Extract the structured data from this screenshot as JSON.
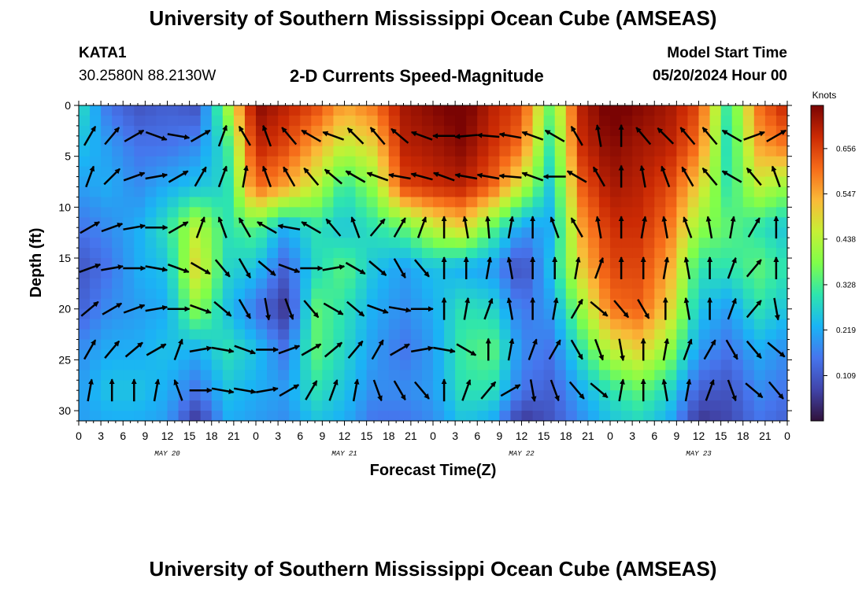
{
  "header": {
    "title": "University of Southern Mississippi Ocean Cube (AMSEAS)",
    "station_id": "KATA1",
    "station_coords": "30.2580N  88.2130W",
    "subtitle": "2-D Currents Speed-Magnitude",
    "model_start_label": "Model Start Time",
    "model_start_value": "05/20/2024 Hour 00"
  },
  "footer": {
    "title": "University of Southern Mississippi Ocean Cube (AMSEAS)"
  },
  "chart_data": {
    "type": "heatmap",
    "title": "2-D Currents Speed-Magnitude",
    "xlabel": "Forecast Time(Z)",
    "ylabel": "Depth (ft)",
    "x_range_hours": [
      0,
      96
    ],
    "y_range_ft": [
      0,
      31
    ],
    "y_inverted": true,
    "x_tick_labels": [
      "0",
      "3",
      "6",
      "9",
      "12",
      "15",
      "18",
      "21",
      "0",
      "3",
      "6",
      "9",
      "12",
      "15",
      "18",
      "21",
      "0",
      "3",
      "6",
      "9",
      "12",
      "15",
      "18",
      "21",
      "0",
      "3",
      "6",
      "9",
      "12",
      "15",
      "18",
      "21",
      "0"
    ],
    "y_ticks": [
      0,
      5,
      10,
      15,
      20,
      25,
      30
    ],
    "day_labels": [
      {
        "label": "MAY 20",
        "hour": 12
      },
      {
        "label": "MAY 21",
        "hour": 36
      },
      {
        "label": "MAY 22",
        "hour": 60
      },
      {
        "label": "MAY 23",
        "hour": 84
      }
    ],
    "colorbar": {
      "title": "Knots",
      "ticks": [
        0.109,
        0.219,
        0.328,
        0.438,
        0.547,
        0.656
      ],
      "range": [
        0.0,
        0.76
      ]
    },
    "time_hours": [
      0,
      4,
      8,
      12,
      16,
      20,
      24,
      28,
      32,
      36,
      40,
      44,
      48,
      52,
      56,
      60,
      64,
      68,
      72,
      76,
      80,
      84,
      88,
      92,
      96
    ],
    "depths_ft": [
      0,
      4,
      8,
      12,
      16,
      20,
      24,
      28,
      31
    ],
    "speed_knots": [
      [
        0.3,
        0.15,
        0.1,
        0.12,
        0.1,
        0.4,
        0.75,
        0.7,
        0.65,
        0.55,
        0.6,
        0.72,
        0.75,
        0.78,
        0.7,
        0.65,
        0.35,
        0.7,
        0.78,
        0.75,
        0.72,
        0.65,
        0.3,
        0.6,
        0.7
      ],
      [
        0.25,
        0.2,
        0.15,
        0.15,
        0.18,
        0.3,
        0.7,
        0.65,
        0.55,
        0.45,
        0.5,
        0.7,
        0.72,
        0.75,
        0.68,
        0.6,
        0.3,
        0.68,
        0.75,
        0.72,
        0.7,
        0.6,
        0.28,
        0.55,
        0.6
      ],
      [
        0.2,
        0.22,
        0.18,
        0.22,
        0.25,
        0.28,
        0.62,
        0.55,
        0.45,
        0.3,
        0.4,
        0.65,
        0.68,
        0.7,
        0.62,
        0.45,
        0.25,
        0.62,
        0.72,
        0.7,
        0.65,
        0.5,
        0.3,
        0.45,
        0.4
      ],
      [
        0.15,
        0.18,
        0.22,
        0.3,
        0.45,
        0.3,
        0.35,
        0.22,
        0.3,
        0.25,
        0.3,
        0.35,
        0.45,
        0.5,
        0.35,
        0.2,
        0.22,
        0.55,
        0.68,
        0.68,
        0.6,
        0.4,
        0.35,
        0.3,
        0.25
      ],
      [
        0.1,
        0.15,
        0.22,
        0.25,
        0.5,
        0.28,
        0.25,
        0.12,
        0.28,
        0.35,
        0.25,
        0.2,
        0.25,
        0.22,
        0.2,
        0.08,
        0.25,
        0.5,
        0.65,
        0.65,
        0.55,
        0.3,
        0.3,
        0.35,
        0.3
      ],
      [
        0.12,
        0.18,
        0.2,
        0.22,
        0.4,
        0.25,
        0.15,
        0.05,
        0.35,
        0.3,
        0.22,
        0.18,
        0.22,
        0.3,
        0.28,
        0.15,
        0.2,
        0.4,
        0.6,
        0.62,
        0.5,
        0.25,
        0.2,
        0.3,
        0.25
      ],
      [
        0.18,
        0.22,
        0.22,
        0.25,
        0.22,
        0.3,
        0.25,
        0.15,
        0.35,
        0.28,
        0.2,
        0.15,
        0.2,
        0.32,
        0.35,
        0.18,
        0.15,
        0.3,
        0.45,
        0.5,
        0.4,
        0.2,
        0.15,
        0.22,
        0.18
      ],
      [
        0.2,
        0.25,
        0.25,
        0.22,
        0.15,
        0.25,
        0.22,
        0.2,
        0.3,
        0.25,
        0.18,
        0.18,
        0.2,
        0.3,
        0.3,
        0.15,
        0.12,
        0.22,
        0.3,
        0.35,
        0.28,
        0.12,
        0.1,
        0.18,
        0.15
      ],
      [
        0.2,
        0.22,
        0.22,
        0.2,
        0.05,
        0.22,
        0.2,
        0.18,
        0.25,
        0.22,
        0.15,
        0.15,
        0.18,
        0.25,
        0.22,
        0.05,
        0.1,
        0.18,
        0.25,
        0.28,
        0.22,
        0.05,
        0.08,
        0.15,
        0.12
      ]
    ],
    "vector_time_hours": [
      1.5,
      4.5,
      7.5,
      10.5,
      13.5,
      16.5,
      19.5,
      22.5,
      25.5,
      28.5,
      31.5,
      34.5,
      37.5,
      40.5,
      43.5,
      46.5,
      49.5,
      52.5,
      55.5,
      58.5,
      61.5,
      64.5,
      67.5,
      70.5,
      73.5,
      76.5,
      79.5,
      82.5,
      85.5,
      88.5,
      91.5,
      94.5
    ],
    "vector_depths_ft": [
      3,
      7,
      12,
      16,
      20,
      24,
      28
    ],
    "vector_directions_deg": [
      [
        30,
        40,
        60,
        110,
        100,
        60,
        20,
        330,
        340,
        320,
        300,
        290,
        315,
        320,
        310,
        290,
        270,
        265,
        275,
        280,
        290,
        300,
        330,
        350,
        0,
        320,
        315,
        320,
        320,
        300,
        70,
        60
      ],
      [
        20,
        45,
        70,
        80,
        60,
        30,
        20,
        10,
        340,
        330,
        320,
        310,
        300,
        290,
        280,
        285,
        290,
        280,
        280,
        275,
        290,
        270,
        300,
        330,
        0,
        350,
        340,
        330,
        320,
        300,
        320,
        340
      ],
      [
        60,
        70,
        80,
        90,
        60,
        20,
        340,
        330,
        300,
        280,
        300,
        320,
        340,
        40,
        30,
        20,
        0,
        350,
        355,
        10,
        0,
        340,
        330,
        350,
        0,
        10,
        350,
        340,
        350,
        10,
        30,
        0
      ],
      [
        70,
        80,
        90,
        100,
        110,
        120,
        140,
        150,
        130,
        110,
        90,
        80,
        120,
        130,
        150,
        140,
        0,
        0,
        10,
        350,
        0,
        0,
        10,
        20,
        0,
        0,
        10,
        350,
        0,
        20,
        40,
        0
      ],
      [
        50,
        60,
        70,
        80,
        90,
        110,
        130,
        150,
        170,
        160,
        140,
        120,
        130,
        110,
        100,
        90,
        0,
        10,
        20,
        350,
        0,
        10,
        30,
        130,
        140,
        150,
        0,
        350,
        0,
        20,
        40,
        170
      ],
      [
        30,
        40,
        50,
        60,
        20,
        80,
        100,
        110,
        90,
        70,
        60,
        50,
        40,
        30,
        60,
        80,
        100,
        120,
        0,
        10,
        20,
        30,
        150,
        160,
        170,
        0,
        10,
        20,
        30,
        150,
        140,
        130
      ],
      [
        10,
        0,
        0,
        10,
        340,
        90,
        100,
        100,
        80,
        60,
        30,
        20,
        10,
        160,
        150,
        140,
        0,
        20,
        40,
        60,
        170,
        160,
        140,
        130,
        10,
        0,
        350,
        10,
        20,
        160,
        130,
        140
      ]
    ]
  }
}
